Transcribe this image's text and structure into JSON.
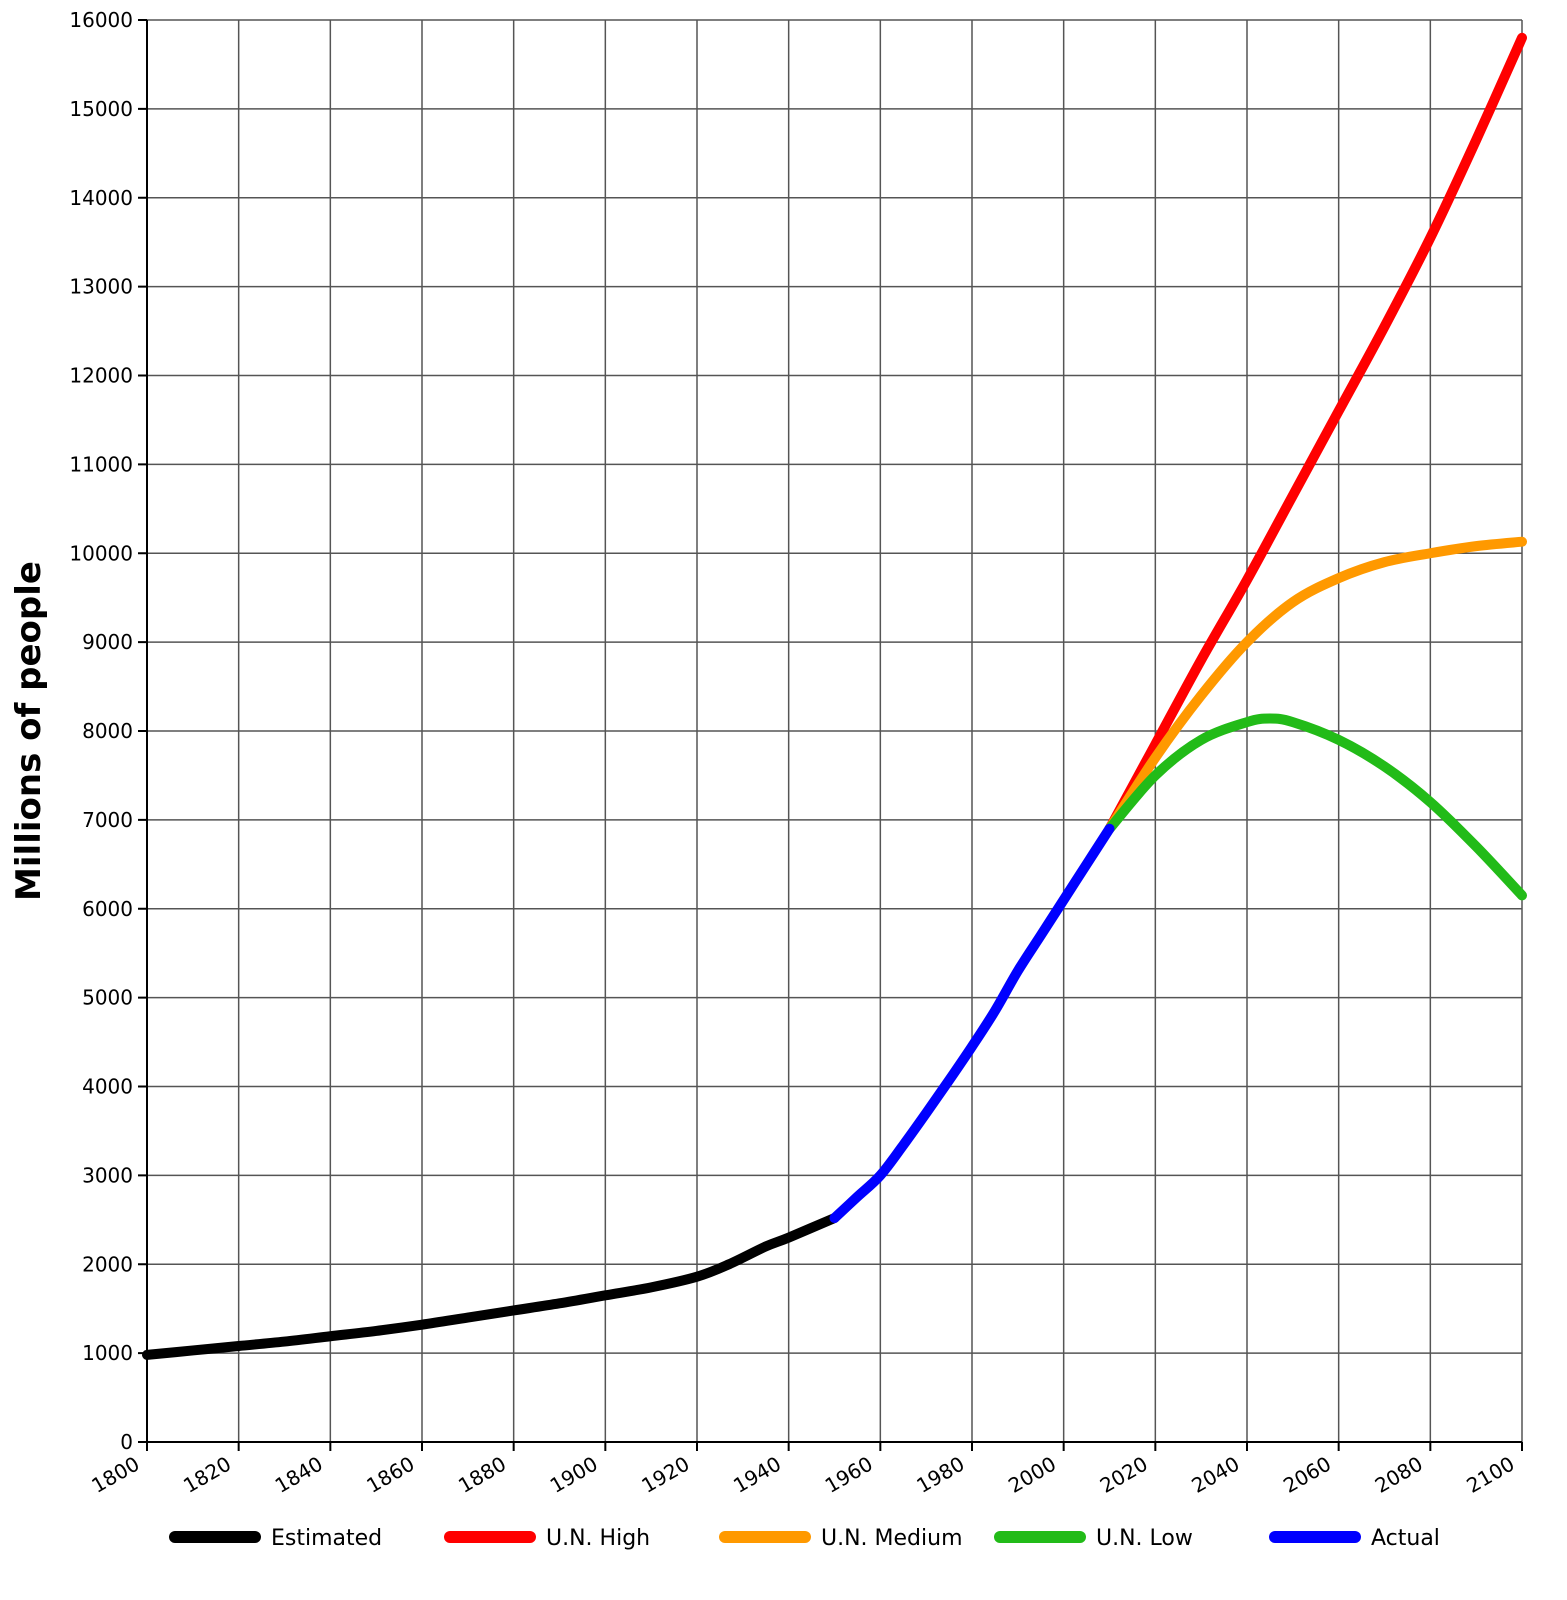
{
  "chart_data": {
    "type": "line",
    "title": "",
    "xlabel": "",
    "ylabel": "Millions of people",
    "xlim": [
      1800,
      2100
    ],
    "ylim": [
      0,
      16000
    ],
    "grid": true,
    "legend_position": "bottom",
    "x_ticks": [
      1800,
      1820,
      1840,
      1860,
      1880,
      1900,
      1920,
      1940,
      1960,
      1980,
      2000,
      2020,
      2040,
      2060,
      2080,
      2100
    ],
    "y_ticks": [
      0,
      1000,
      2000,
      3000,
      4000,
      5000,
      6000,
      7000,
      8000,
      9000,
      10000,
      11000,
      12000,
      13000,
      14000,
      15000,
      16000
    ],
    "series": [
      {
        "name": "Estimated",
        "color": "#000000",
        "x": [
          1800,
          1810,
          1820,
          1830,
          1840,
          1850,
          1860,
          1870,
          1880,
          1890,
          1900,
          1910,
          1920,
          1927,
          1935,
          1940,
          1950
        ],
        "values": [
          980,
          1030,
          1080,
          1130,
          1190,
          1250,
          1320,
          1400,
          1480,
          1560,
          1650,
          1740,
          1860,
          2000,
          2200,
          2300,
          2520
        ]
      },
      {
        "name": "U.N. High",
        "color": "#ff0000",
        "x": [
          2010,
          2020,
          2030,
          2040,
          2050,
          2060,
          2070,
          2080,
          2090,
          2100
        ],
        "values": [
          6900,
          7850,
          8800,
          9700,
          10650,
          11600,
          12550,
          13550,
          14650,
          15800
        ]
      },
      {
        "name": "U.N. Medium",
        "color": "#ff9900",
        "x": [
          2010,
          2020,
          2030,
          2040,
          2050,
          2060,
          2070,
          2080,
          2090,
          2100
        ],
        "values": [
          6900,
          7700,
          8400,
          9000,
          9450,
          9720,
          9900,
          10000,
          10080,
          10130
        ]
      },
      {
        "name": "U.N. Low",
        "color": "#22bb18",
        "x": [
          2010,
          2020,
          2030,
          2040,
          2045,
          2050,
          2060,
          2070,
          2080,
          2090,
          2100
        ],
        "values": [
          6900,
          7500,
          7900,
          8100,
          8140,
          8100,
          7900,
          7600,
          7200,
          6700,
          6150
        ]
      },
      {
        "name": "Actual",
        "color": "#0000ff",
        "x": [
          1950,
          1955,
          1960,
          1965,
          1970,
          1975,
          1980,
          1985,
          1990,
          1995,
          2000,
          2005,
          2010
        ],
        "values": [
          2520,
          2760,
          3000,
          3340,
          3700,
          4070,
          4450,
          4850,
          5300,
          5700,
          6100,
          6500,
          6900
        ]
      }
    ]
  },
  "legend": {
    "items": [
      {
        "label": "Estimated",
        "color": "#000000"
      },
      {
        "label": "U.N. High",
        "color": "#ff0000"
      },
      {
        "label": "U.N. Medium",
        "color": "#ff9900"
      },
      {
        "label": "U.N. Low",
        "color": "#22bb18"
      },
      {
        "label": "Actual",
        "color": "#0000ff"
      }
    ]
  },
  "axes": {
    "ylabel": "Millions of people"
  }
}
